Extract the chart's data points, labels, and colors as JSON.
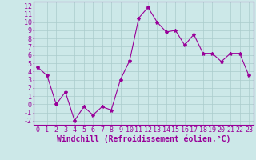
{
  "x": [
    0,
    1,
    2,
    3,
    4,
    5,
    6,
    7,
    8,
    9,
    10,
    11,
    12,
    13,
    14,
    15,
    16,
    17,
    18,
    19,
    20,
    21,
    22,
    23
  ],
  "y": [
    4.5,
    3.5,
    0.0,
    1.5,
    -2.0,
    -0.3,
    -1.3,
    -0.3,
    -0.7,
    3.0,
    5.3,
    10.5,
    11.8,
    10.0,
    8.8,
    9.0,
    7.2,
    8.5,
    6.2,
    6.2,
    5.2,
    6.2,
    6.2,
    3.5
  ],
  "line_color": "#990099",
  "marker": "*",
  "marker_size": 3,
  "bg_color": "#cce8e8",
  "grid_color": "#aacccc",
  "xlabel": "Windchill (Refroidissement éolien,°C)",
  "xlabel_color": "#990099",
  "xlabel_fontsize": 7,
  "tick_color": "#990099",
  "tick_fontsize": 6,
  "ylim": [
    -2.5,
    12.5
  ],
  "xlim": [
    -0.5,
    23.5
  ],
  "yticks": [
    -2,
    -1,
    0,
    1,
    2,
    3,
    4,
    5,
    6,
    7,
    8,
    9,
    10,
    11,
    12
  ],
  "xticks": [
    0,
    1,
    2,
    3,
    4,
    5,
    6,
    7,
    8,
    9,
    10,
    11,
    12,
    13,
    14,
    15,
    16,
    17,
    18,
    19,
    20,
    21,
    22,
    23
  ],
  "spine_color": "#990099",
  "axis_bg": "#cce8e8"
}
